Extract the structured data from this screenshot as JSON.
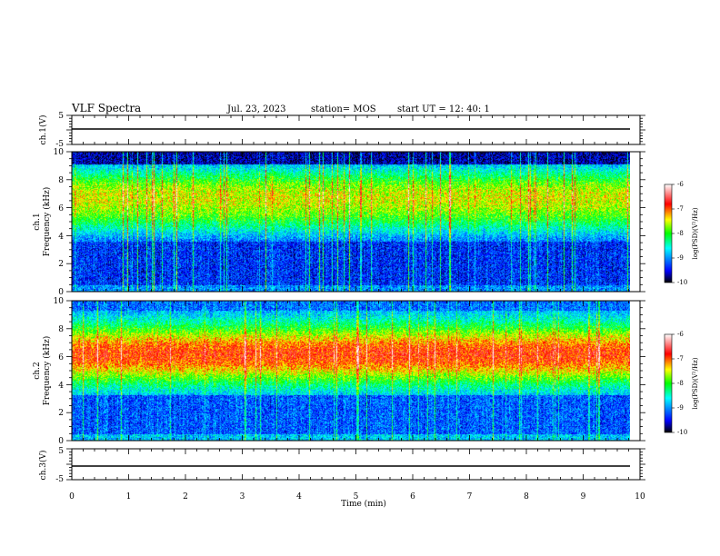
{
  "header": {
    "title": "VLF Spectra",
    "date": "Jul. 23, 2023",
    "station": "station= MOS",
    "start_ut": "start UT =  12: 40: 1"
  },
  "chart_data": [
    {
      "type": "line",
      "ylabel": "ch.1(V)",
      "ylim": [
        -5,
        5
      ],
      "ytick_labels": [
        "5",
        "-5"
      ],
      "series": [
        {
          "x": [
            0,
            9.83
          ],
          "y": [
            -1.7,
            -1.7
          ]
        }
      ]
    },
    {
      "type": "heatmap",
      "ylabel": "ch.1\nFrequency (kHz)",
      "ylim": [
        0,
        10
      ],
      "ytick_labels": [
        "0",
        "2",
        "4",
        "6",
        "8",
        "10"
      ],
      "colorbar": {
        "label": "log(PSD)(V²/Hz)",
        "ticks": [
          "-6",
          "-7",
          "-8",
          "-9",
          "-10"
        ]
      },
      "color_scale": [
        "#000000",
        "#0000ff",
        "#00ffff",
        "#00ff00",
        "#ffff00",
        "#ff0000",
        "#ffffff"
      ]
    },
    {
      "type": "heatmap",
      "ylabel": "ch.2\nFrequency (kHz)",
      "ylim": [
        0,
        10
      ],
      "ytick_labels": [
        "0",
        "2",
        "4",
        "6",
        "8",
        "10"
      ],
      "colorbar": {
        "label": "log(PSD)(V²/Hz)",
        "ticks": [
          "-6",
          "-7",
          "-8",
          "-9",
          "-10"
        ]
      },
      "color_scale": [
        "#000000",
        "#0000ff",
        "#00ffff",
        "#00ff00",
        "#ffff00",
        "#ff0000",
        "#ffffff"
      ]
    },
    {
      "type": "line",
      "ylabel": "ch.3(V)",
      "ylim": [
        -5,
        5
      ],
      "ytick_labels": [
        "5",
        "-5"
      ],
      "xlabel": "Time (min)",
      "xlim": [
        0,
        10
      ],
      "xtick_labels": [
        "0",
        "1",
        "2",
        "3",
        "4",
        "5",
        "6",
        "7",
        "8",
        "9",
        "10"
      ],
      "series": [
        {
          "x": [
            0,
            9.83
          ],
          "y": [
            -1.7,
            -1.7
          ]
        }
      ]
    }
  ]
}
